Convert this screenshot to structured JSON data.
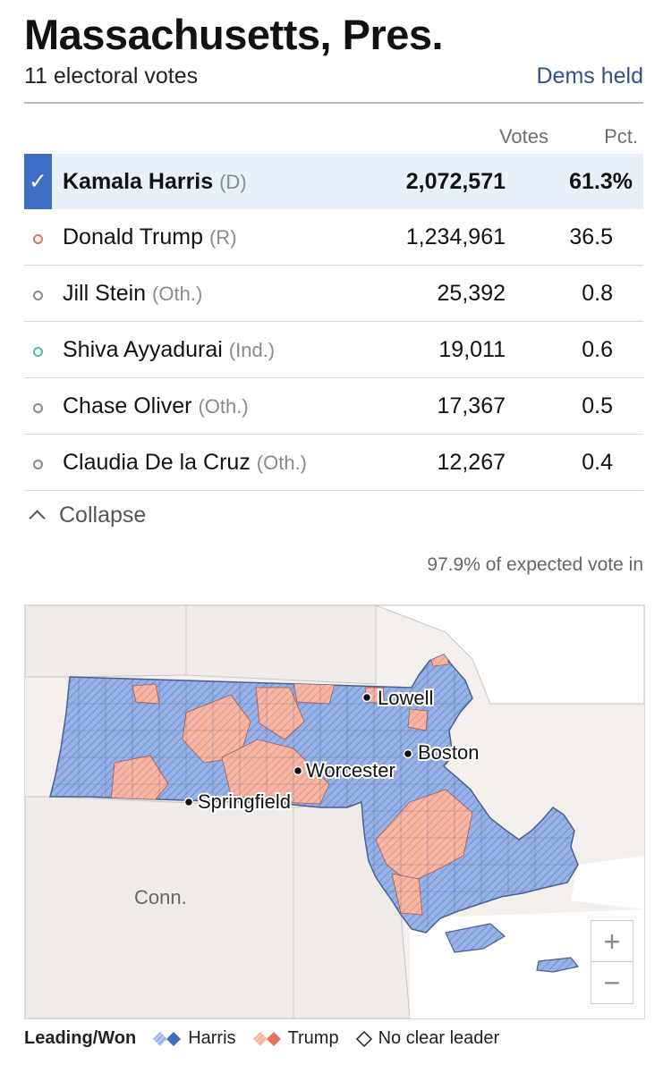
{
  "header": {
    "title": "Massachusetts, Pres.",
    "electoral_votes": "11 electoral votes",
    "held_status": "Dems held"
  },
  "table": {
    "votes_header": "Votes",
    "pct_header": "Pct.",
    "rows": [
      {
        "name": "Kamala Harris",
        "party": "(D)",
        "votes": "2,072,571",
        "pct": "61.3%",
        "winner": true,
        "marker_color": "#3e6fc4"
      },
      {
        "name": "Donald Trump",
        "party": "(R)",
        "votes": "1,234,961",
        "pct": "36.5",
        "winner": false,
        "marker_color": "#e8705c"
      },
      {
        "name": "Jill Stein",
        "party": "(Oth.)",
        "votes": "25,392",
        "pct": "0.8",
        "winner": false,
        "marker_color": "#8c8c8c"
      },
      {
        "name": "Shiva Ayyadurai",
        "party": "(Ind.)",
        "votes": "19,011",
        "pct": "0.6",
        "winner": false,
        "marker_color": "#4fb8a8"
      },
      {
        "name": "Chase Oliver",
        "party": "(Oth.)",
        "votes": "17,367",
        "pct": "0.5",
        "winner": false,
        "marker_color": "#8c8c8c"
      },
      {
        "name": "Claudia De la Cruz",
        "party": "(Oth.)",
        "votes": "12,267",
        "pct": "0.4",
        "winner": false,
        "marker_color": "#8c8c8c"
      }
    ]
  },
  "collapse_label": "Collapse",
  "expected_vote": "97.9% of expected vote in",
  "map": {
    "cities": {
      "lowell": "Lowell",
      "boston": "Boston",
      "worcester": "Worcester",
      "springfield": "Springfield"
    },
    "state_label": "Conn.",
    "zoom_in": "+",
    "zoom_out": "−",
    "colors": {
      "harris": "#7f9fdc",
      "trump": "#f0a08e",
      "land": "#f3efed",
      "border": "#5d6f96"
    }
  },
  "legend": {
    "title": "Leading/Won",
    "harris": "Harris",
    "trump": "Trump",
    "no_leader": "No clear leader"
  }
}
